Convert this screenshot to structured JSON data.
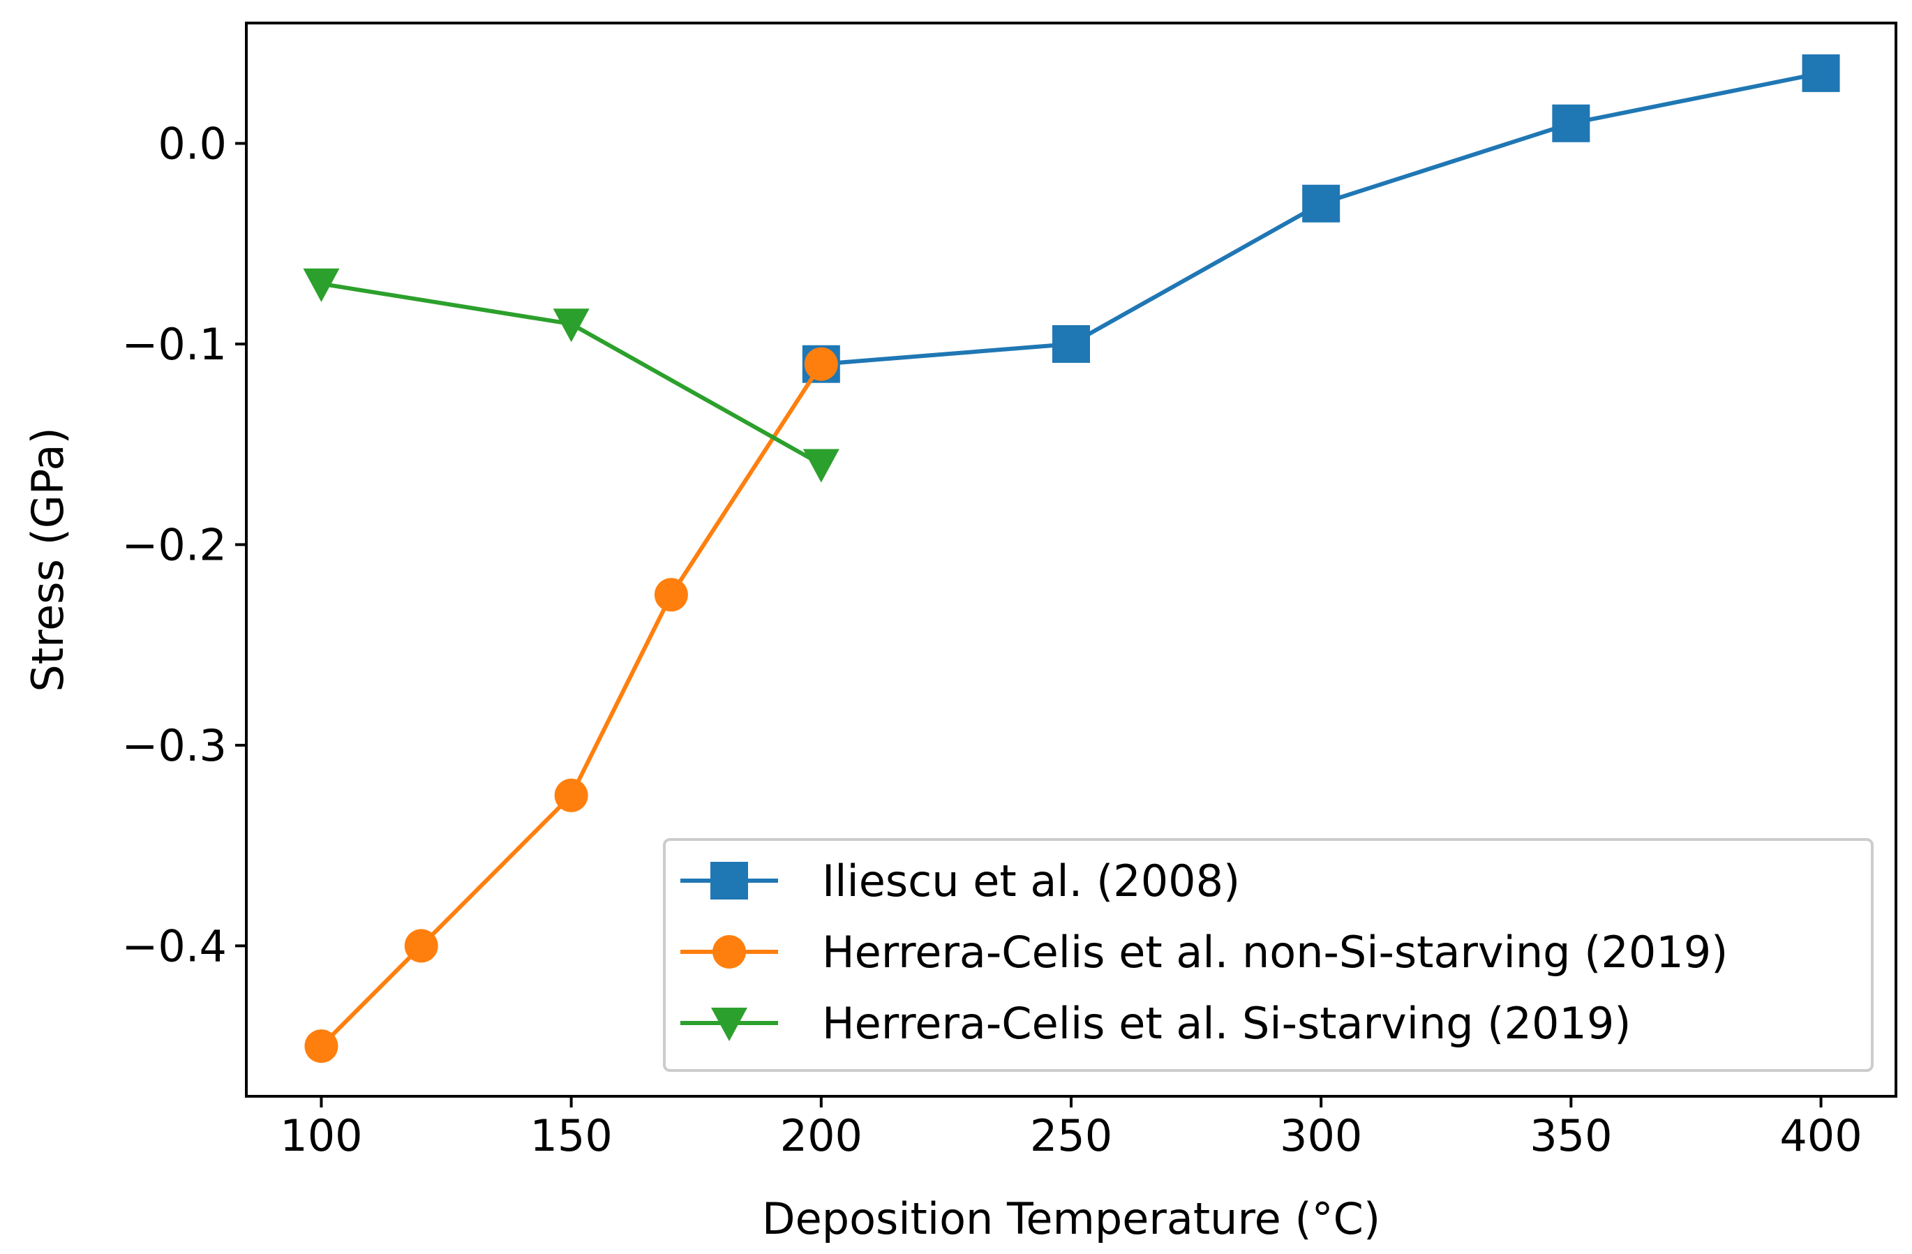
{
  "chart_data": {
    "type": "line",
    "title": "",
    "xlabel": "Deposition Temperature (°C)",
    "ylabel": "Stress (GPa)",
    "xlim": [
      85,
      415
    ],
    "ylim": [
      -0.475,
      0.06
    ],
    "xticks": [
      100,
      150,
      200,
      250,
      300,
      350,
      400
    ],
    "xtick_labels": [
      "100",
      "150",
      "200",
      "250",
      "300",
      "350",
      "400"
    ],
    "yticks": [
      0.0,
      -0.1,
      -0.2,
      -0.3,
      -0.4
    ],
    "ytick_labels": [
      "0.0",
      "−0.1",
      "−0.2",
      "−0.3",
      "−0.4"
    ],
    "grid": false,
    "legend_position": "lower-right",
    "series": [
      {
        "name": "Iliescu et al. (2008)",
        "color": "#1f77b4",
        "marker": "square",
        "x": [
          200,
          250,
          300,
          350,
          400
        ],
        "y": [
          -0.11,
          -0.1,
          -0.03,
          0.01,
          0.035
        ]
      },
      {
        "name": "Herrera-Celis et al. non-Si-starving (2019)",
        "color": "#ff7f0e",
        "marker": "circle",
        "x": [
          100,
          120,
          150,
          170,
          200
        ],
        "y": [
          -0.45,
          -0.4,
          -0.325,
          -0.225,
          -0.11
        ]
      },
      {
        "name": "Herrera-Celis et al. Si-starving (2019)",
        "color": "#2ca02c",
        "marker": "triangle-down",
        "x": [
          100,
          150,
          200
        ],
        "y": [
          -0.07,
          -0.09,
          -0.16
        ]
      }
    ]
  }
}
